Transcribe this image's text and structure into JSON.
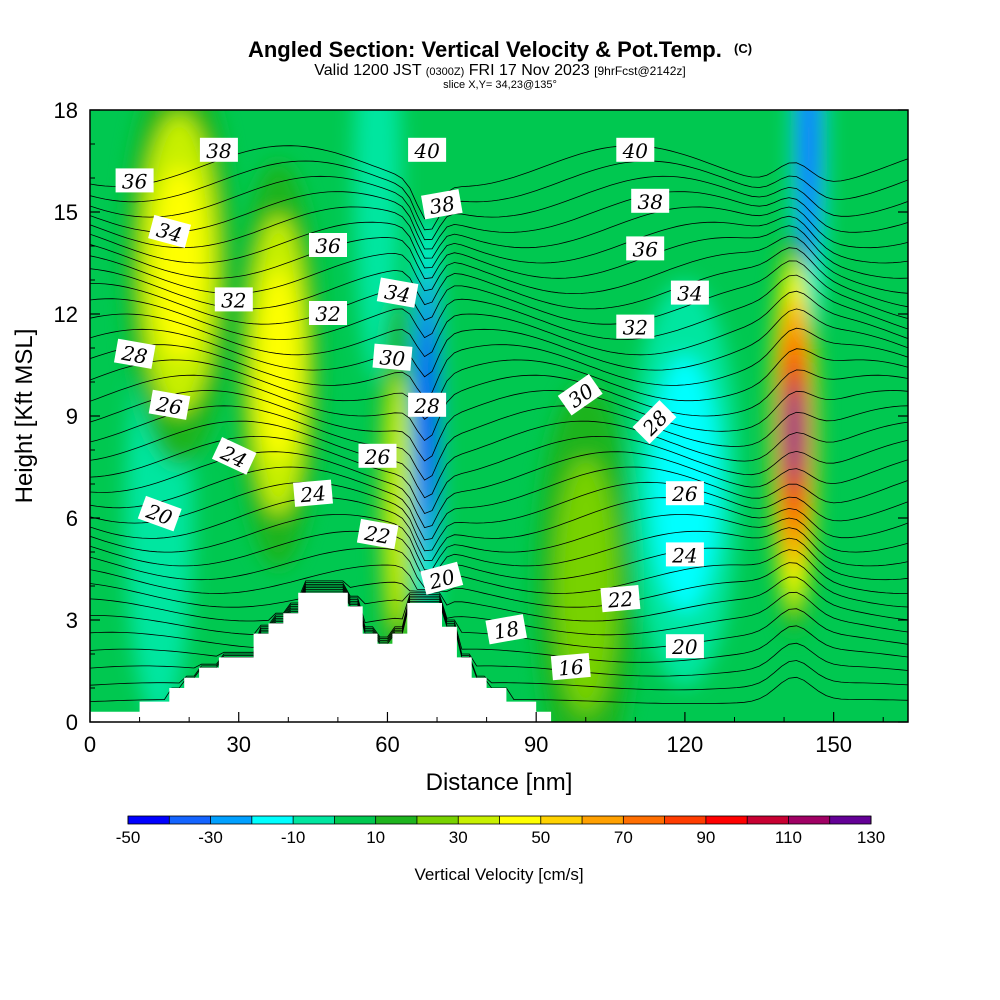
{
  "title": "Angled Section: Vertical Velocity & Pot.Temp.",
  "title_mark": "(C)",
  "subtitle_valid": "Valid 1200 JST",
  "subtitle_utc": "(0300Z)",
  "subtitle_date": "FRI 17 Nov 2023",
  "subtitle_fcst": "[9hrFcst@2142z]",
  "subtitle_slice": "slice X,Y= 34,23@135°",
  "chart_data": {
    "type": "heatmap",
    "xlabel": "Distance [nm]",
    "ylabel": "Height [Kft MSL]",
    "xlim": [
      0,
      165
    ],
    "ylim": [
      0,
      18
    ],
    "xticks": [
      0,
      30,
      60,
      90,
      120,
      150
    ],
    "xtick_labels": [
      "0",
      "30",
      "60",
      "90",
      "120",
      "150"
    ],
    "yticks": [
      0,
      3,
      6,
      9,
      12,
      15,
      18
    ],
    "ytick_labels": [
      "0",
      "3",
      "6",
      "9",
      "12",
      "15",
      "18"
    ],
    "colorbar": {
      "label": "Vertical Velocity [cm/s]",
      "levels": [
        -50,
        -40,
        -30,
        -20,
        -10,
        0,
        10,
        20,
        30,
        40,
        50,
        60,
        70,
        80,
        90,
        100,
        110,
        120,
        130
      ],
      "colors": [
        "#0000ff",
        "#1464ff",
        "#00a0ff",
        "#00ffff",
        "#00e6a0",
        "#00c850",
        "#1eb41e",
        "#78d200",
        "#c8f000",
        "#ffff00",
        "#ffd200",
        "#ffa000",
        "#ff6e00",
        "#ff3c00",
        "#ff0000",
        "#c80032",
        "#a00064",
        "#640096"
      ],
      "tick_values": [
        -50,
        -30,
        -10,
        10,
        30,
        50,
        70,
        90,
        110,
        130
      ],
      "tick_labels": [
        "-50",
        "-30",
        "-10",
        "10",
        "30",
        "50",
        "70",
        "90",
        "110",
        "130"
      ]
    },
    "velocity_features": [
      {
        "x": 18,
        "y": 13.5,
        "w": 20,
        "v": 45
      },
      {
        "x": 38,
        "y": 10.5,
        "w": 15,
        "v": 45
      },
      {
        "x": 62,
        "y": 6.5,
        "w": 6,
        "v": 35
      },
      {
        "x": 68,
        "y": 9.0,
        "w": 4,
        "v": -50
      },
      {
        "x": 58,
        "y": 16.0,
        "w": 8,
        "v": -10
      },
      {
        "x": 120,
        "y": 7.0,
        "w": 20,
        "v": -15
      },
      {
        "x": 142,
        "y": 8.5,
        "w": 8,
        "v": 120
      },
      {
        "x": 145,
        "y": 17.0,
        "w": 5,
        "v": -35
      },
      {
        "x": 14,
        "y": 6.0,
        "w": 12,
        "v": -5
      },
      {
        "x": 100,
        "y": 4.0,
        "w": 18,
        "v": 25
      }
    ],
    "contour_labels": [
      {
        "value": "38",
        "x": 26,
        "y": 16.8,
        "angle": 0
      },
      {
        "value": "36",
        "x": 9,
        "y": 15.9,
        "angle": 0
      },
      {
        "value": "34",
        "x": 16,
        "y": 14.4,
        "angle": 15
      },
      {
        "value": "32",
        "x": 29,
        "y": 12.4,
        "angle": 0
      },
      {
        "value": "28",
        "x": 9,
        "y": 10.8,
        "angle": 10
      },
      {
        "value": "26",
        "x": 16,
        "y": 9.3,
        "angle": 10
      },
      {
        "value": "24",
        "x": 29,
        "y": 7.8,
        "angle": 25
      },
      {
        "value": "20",
        "x": 14,
        "y": 6.1,
        "angle": 20
      },
      {
        "value": "36",
        "x": 48,
        "y": 14.0,
        "angle": 0
      },
      {
        "value": "32",
        "x": 48,
        "y": 12.0,
        "angle": 0
      },
      {
        "value": "24",
        "x": 45,
        "y": 6.7,
        "angle": -5
      },
      {
        "value": "40",
        "x": 68,
        "y": 16.8,
        "angle": 0
      },
      {
        "value": "38",
        "x": 71,
        "y": 15.2,
        "angle": -10
      },
      {
        "value": "34",
        "x": 62,
        "y": 12.6,
        "angle": 10
      },
      {
        "value": "30",
        "x": 61,
        "y": 10.7,
        "angle": 5
      },
      {
        "value": "28",
        "x": 68,
        "y": 9.3,
        "angle": 0
      },
      {
        "value": "26",
        "x": 58,
        "y": 7.8,
        "angle": 0
      },
      {
        "value": "22",
        "x": 58,
        "y": 5.5,
        "angle": 10
      },
      {
        "value": "20",
        "x": 71,
        "y": 4.2,
        "angle": -15
      },
      {
        "value": "18",
        "x": 84,
        "y": 2.7,
        "angle": -10
      },
      {
        "value": "16",
        "x": 97,
        "y": 1.6,
        "angle": -5
      },
      {
        "value": "40",
        "x": 110,
        "y": 16.8,
        "angle": 0
      },
      {
        "value": "38",
        "x": 113,
        "y": 15.3,
        "angle": 0
      },
      {
        "value": "36",
        "x": 112,
        "y": 13.9,
        "angle": 0
      },
      {
        "value": "34",
        "x": 121,
        "y": 12.6,
        "angle": 0
      },
      {
        "value": "32",
        "x": 110,
        "y": 11.6,
        "angle": 0
      },
      {
        "value": "30",
        "x": 99,
        "y": 9.6,
        "angle": -35
      },
      {
        "value": "28",
        "x": 114,
        "y": 8.8,
        "angle": -45
      },
      {
        "value": "26",
        "x": 120,
        "y": 6.7,
        "angle": 0
      },
      {
        "value": "24",
        "x": 120,
        "y": 4.9,
        "angle": 0
      },
      {
        "value": "22",
        "x": 107,
        "y": 3.6,
        "angle": -5
      },
      {
        "value": "20",
        "x": 120,
        "y": 2.2,
        "angle": 0
      }
    ]
  }
}
